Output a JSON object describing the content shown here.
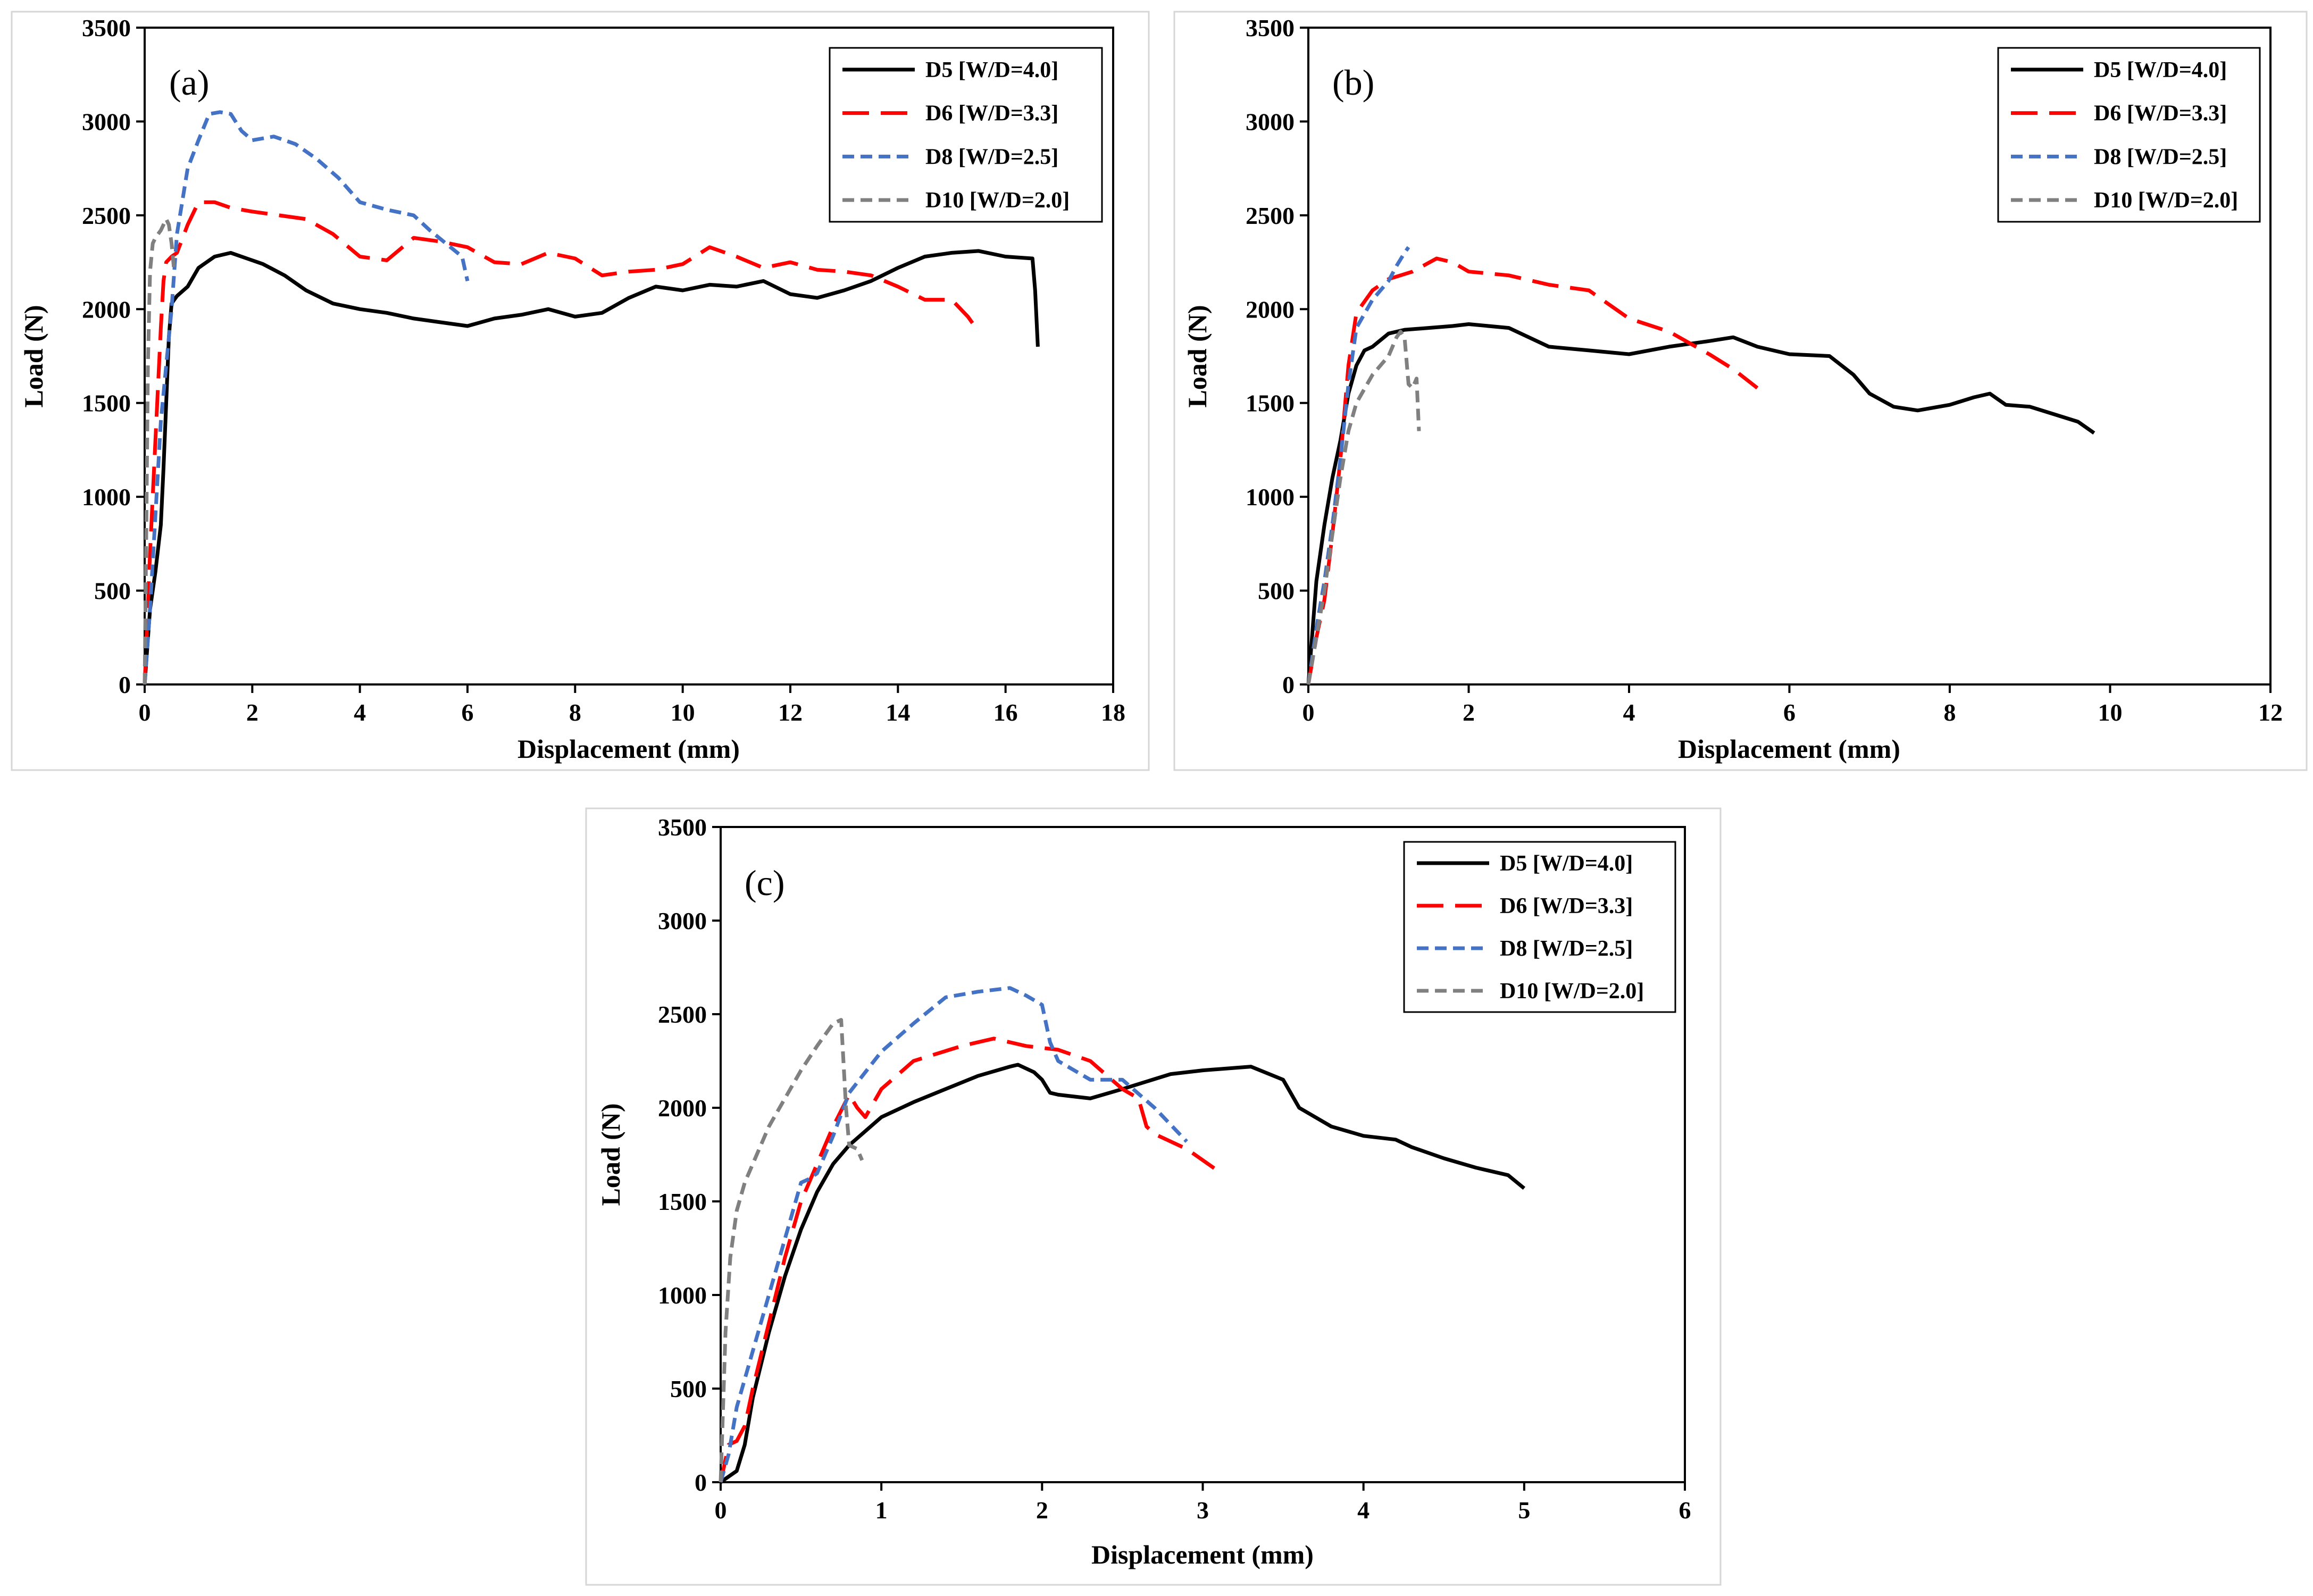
{
  "colors": {
    "D5": "#000000",
    "D6": "#ff0000",
    "D8": "#4472c4",
    "D10": "#808080"
  },
  "chart_data": [
    {
      "type": "line",
      "panel_label": "(a)",
      "xlabel": "Displacement (mm)",
      "ylabel": "Load (N)",
      "xlim": [
        0,
        18
      ],
      "ylim": [
        0,
        3500
      ],
      "xticks": [
        "0",
        "2",
        "4",
        "6",
        "8",
        "10",
        "12",
        "14",
        "16",
        "18"
      ],
      "yticks": [
        "0",
        "500",
        "1000",
        "1500",
        "2000",
        "2500",
        "3000",
        "3500"
      ],
      "grid": false,
      "legend_position": "top-right",
      "series": [
        {
          "name": "D5 [W/D=4.0]",
          "key": "D5",
          "dash": "solid",
          "x": [
            0,
            0.1,
            0.2,
            0.3,
            0.35,
            0.4,
            0.45,
            0.5,
            0.55,
            0.6,
            0.8,
            1.0,
            1.3,
            1.6,
            1.9,
            2.2,
            2.6,
            3.0,
            3.5,
            4.0,
            4.5,
            5.0,
            5.5,
            6.0,
            6.5,
            7.0,
            7.5,
            8.0,
            8.5,
            9.0,
            9.5,
            10.0,
            10.5,
            11.0,
            11.5,
            12.0,
            12.5,
            13.0,
            13.5,
            14.0,
            14.5,
            15.0,
            15.5,
            16.0,
            16.5,
            16.55,
            16.6
          ],
          "y": [
            0,
            400,
            600,
            850,
            1150,
            1500,
            1850,
            2030,
            2050,
            2070,
            2120,
            2220,
            2280,
            2300,
            2270,
            2240,
            2180,
            2100,
            2030,
            2000,
            1980,
            1950,
            1930,
            1910,
            1950,
            1970,
            2000,
            1960,
            1980,
            2060,
            2120,
            2100,
            2130,
            2120,
            2150,
            2080,
            2060,
            2100,
            2150,
            2220,
            2280,
            2300,
            2310,
            2280,
            2270,
            2100,
            1800
          ]
        },
        {
          "name": "D6 [W/D=3.3]",
          "key": "D6",
          "dash": "long",
          "x": [
            0,
            0.1,
            0.2,
            0.3,
            0.35,
            0.4,
            0.5,
            0.6,
            0.8,
            1.0,
            1.3,
            1.6,
            2.0,
            2.5,
            3.0,
            3.5,
            4.0,
            4.5,
            5.0,
            5.5,
            6.0,
            6.5,
            7.0,
            7.5,
            8.0,
            8.5,
            9.0,
            9.5,
            10.0,
            10.5,
            11.0,
            11.5,
            12.0,
            12.5,
            13.0,
            13.5,
            14.0,
            14.5,
            15.0,
            15.3,
            15.5
          ],
          "y": [
            0,
            700,
            1300,
            1900,
            2150,
            2250,
            2280,
            2300,
            2450,
            2570,
            2570,
            2540,
            2520,
            2500,
            2480,
            2400,
            2280,
            2260,
            2380,
            2360,
            2330,
            2250,
            2240,
            2300,
            2270,
            2180,
            2200,
            2210,
            2240,
            2330,
            2280,
            2220,
            2250,
            2210,
            2200,
            2180,
            2120,
            2050,
            2050,
            1960,
            1880
          ]
        },
        {
          "name": "D8 [W/D=2.5]",
          "key": "D8",
          "dash": "short",
          "x": [
            0,
            0.1,
            0.2,
            0.3,
            0.4,
            0.5,
            0.6,
            0.8,
            1.0,
            1.2,
            1.4,
            1.6,
            1.8,
            2.0,
            2.4,
            2.8,
            3.2,
            3.6,
            4.0,
            4.5,
            5.0,
            5.3,
            5.6,
            5.9,
            6.0
          ],
          "y": [
            0,
            400,
            900,
            1400,
            1700,
            2000,
            2400,
            2750,
            2900,
            3040,
            3050,
            3040,
            2950,
            2900,
            2920,
            2880,
            2800,
            2700,
            2570,
            2530,
            2500,
            2420,
            2350,
            2280,
            2150
          ]
        },
        {
          "name": "D10 [W/D=2.0]",
          "key": "D10",
          "dash": "short",
          "x": [
            0,
            0.03,
            0.06,
            0.1,
            0.15,
            0.2,
            0.3,
            0.4,
            0.45,
            0.5,
            0.55
          ],
          "y": [
            0,
            800,
            1700,
            2200,
            2350,
            2380,
            2420,
            2480,
            2450,
            2350,
            2200
          ]
        }
      ]
    },
    {
      "type": "line",
      "panel_label": "(b)",
      "xlabel": "Displacement (mm)",
      "ylabel": "Load (N)",
      "xlim": [
        0,
        12
      ],
      "ylim": [
        0,
        3500
      ],
      "xticks": [
        "0",
        "2",
        "4",
        "6",
        "8",
        "10",
        "12"
      ],
      "yticks": [
        "0",
        "500",
        "1000",
        "1500",
        "2000",
        "2500",
        "3000",
        "3500"
      ],
      "grid": false,
      "legend_position": "top-right",
      "series": [
        {
          "name": "D5 [W/D=4.0]",
          "key": "D5",
          "dash": "solid",
          "x": [
            0,
            0.1,
            0.2,
            0.3,
            0.4,
            0.5,
            0.6,
            0.7,
            0.8,
            1.0,
            1.2,
            1.5,
            1.8,
            2.0,
            2.5,
            3.0,
            3.5,
            4.0,
            4.5,
            5.0,
            5.3,
            5.6,
            6.0,
            6.5,
            6.8,
            7.0,
            7.3,
            7.6,
            8.0,
            8.3,
            8.5,
            8.7,
            9.0,
            9.3,
            9.6,
            9.8
          ],
          "y": [
            0,
            550,
            850,
            1100,
            1300,
            1550,
            1700,
            1780,
            1800,
            1870,
            1890,
            1900,
            1910,
            1920,
            1900,
            1800,
            1780,
            1760,
            1800,
            1830,
            1850,
            1800,
            1760,
            1750,
            1650,
            1550,
            1480,
            1460,
            1490,
            1530,
            1550,
            1490,
            1480,
            1440,
            1400,
            1340
          ]
        },
        {
          "name": "D6 [W/D=3.3]",
          "key": "D6",
          "dash": "long",
          "x": [
            0,
            0.1,
            0.2,
            0.3,
            0.4,
            0.5,
            0.6,
            0.8,
            1.0,
            1.3,
            1.6,
            1.8,
            2.0,
            2.5,
            3.0,
            3.5,
            4.0,
            4.5,
            5.0,
            5.3,
            5.6
          ],
          "y": [
            0,
            250,
            450,
            800,
            1200,
            1700,
            1980,
            2100,
            2160,
            2200,
            2270,
            2250,
            2200,
            2180,
            2130,
            2100,
            1950,
            1880,
            1760,
            1680,
            1580
          ]
        },
        {
          "name": "D8 [W/D=2.5]",
          "key": "D8",
          "dash": "short",
          "x": [
            0,
            0.1,
            0.2,
            0.3,
            0.4,
            0.5,
            0.6,
            0.8,
            1.0,
            1.1,
            1.2,
            1.25
          ],
          "y": [
            0,
            300,
            550,
            850,
            1200,
            1600,
            1900,
            2050,
            2150,
            2230,
            2300,
            2330
          ]
        },
        {
          "name": "D10 [W/D=2.0]",
          "key": "D10",
          "dash": "short",
          "x": [
            0,
            0.1,
            0.2,
            0.3,
            0.4,
            0.5,
            0.6,
            0.8,
            1.0,
            1.1,
            1.15,
            1.2,
            1.25,
            1.3,
            1.35,
            1.38
          ],
          "y": [
            0,
            250,
            500,
            800,
            1100,
            1350,
            1500,
            1650,
            1750,
            1850,
            1880,
            1850,
            1600,
            1580,
            1630,
            1350
          ]
        }
      ]
    },
    {
      "type": "line",
      "panel_label": "(c)",
      "xlabel": "Displacement (mm)",
      "ylabel": "Load (N)",
      "xlim": [
        0,
        6
      ],
      "ylim": [
        0,
        3500
      ],
      "xticks": [
        "0",
        "1",
        "2",
        "3",
        "4",
        "5",
        "6"
      ],
      "yticks": [
        "0",
        "500",
        "1000",
        "1500",
        "2000",
        "2500",
        "3000",
        "3500"
      ],
      "grid": false,
      "legend_position": "top-right",
      "series": [
        {
          "name": "D5 [W/D=4.0]",
          "key": "D5",
          "dash": "solid",
          "x": [
            0,
            0.05,
            0.1,
            0.15,
            0.2,
            0.3,
            0.4,
            0.5,
            0.6,
            0.7,
            0.8,
            1.0,
            1.2,
            1.4,
            1.6,
            1.8,
            1.85,
            1.95,
            2.0,
            2.05,
            2.1,
            2.3,
            2.5,
            2.8,
            3.0,
            3.3,
            3.5,
            3.6,
            3.8,
            4.0,
            4.2,
            4.3,
            4.5,
            4.7,
            4.9,
            5.0
          ],
          "y": [
            0,
            30,
            60,
            200,
            450,
            800,
            1100,
            1350,
            1550,
            1700,
            1800,
            1950,
            2030,
            2100,
            2170,
            2220,
            2230,
            2190,
            2150,
            2080,
            2070,
            2050,
            2100,
            2180,
            2200,
            2220,
            2150,
            2000,
            1900,
            1850,
            1830,
            1790,
            1730,
            1680,
            1640,
            1570
          ]
        },
        {
          "name": "D6 [W/D=3.3]",
          "key": "D6",
          "dash": "long",
          "x": [
            0,
            0.05,
            0.1,
            0.15,
            0.2,
            0.3,
            0.4,
            0.5,
            0.6,
            0.7,
            0.8,
            0.85,
            0.9,
            1.0,
            1.2,
            1.5,
            1.7,
            1.9,
            2.1,
            2.3,
            2.5,
            2.6,
            2.65,
            2.7,
            2.9,
            3.1
          ],
          "y": [
            0,
            200,
            220,
            300,
            500,
            850,
            1200,
            1500,
            1700,
            1900,
            2070,
            2000,
            1950,
            2100,
            2250,
            2330,
            2370,
            2330,
            2310,
            2250,
            2100,
            2050,
            1900,
            1860,
            1780,
            1660
          ]
        },
        {
          "name": "D8 [W/D=2.5]",
          "key": "D8",
          "dash": "short",
          "x": [
            0,
            0.05,
            0.1,
            0.2,
            0.3,
            0.4,
            0.5,
            0.55,
            0.6,
            0.7,
            0.8,
            1.0,
            1.2,
            1.4,
            1.6,
            1.8,
            1.9,
            2.0,
            2.05,
            2.1,
            2.3,
            2.5,
            2.7,
            2.9
          ],
          "y": [
            0,
            150,
            400,
            700,
            1000,
            1300,
            1600,
            1620,
            1650,
            1850,
            2080,
            2300,
            2450,
            2590,
            2620,
            2640,
            2600,
            2550,
            2350,
            2250,
            2150,
            2150,
            2000,
            1820
          ]
        },
        {
          "name": "D10 [W/D=2.0]",
          "key": "D10",
          "dash": "short",
          "x": [
            0,
            0.03,
            0.06,
            0.1,
            0.15,
            0.2,
            0.3,
            0.4,
            0.5,
            0.6,
            0.7,
            0.75,
            0.78,
            0.8,
            0.85,
            0.88
          ],
          "y": [
            0,
            800,
            1200,
            1450,
            1600,
            1700,
            1900,
            2050,
            2200,
            2330,
            2450,
            2470,
            2000,
            1800,
            1780,
            1720
          ]
        }
      ]
    }
  ]
}
